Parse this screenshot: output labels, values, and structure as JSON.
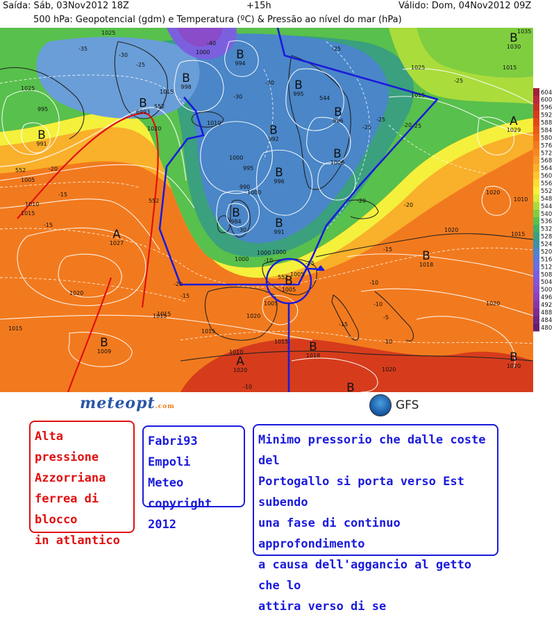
{
  "header": {
    "run": "Saída: Sáb, 03Nov2012 18Z",
    "lead": "+15h",
    "valid": "Válido: Dom, 04Nov2012 09Z",
    "title": "500 hPa: Geopotencial (gdm) e Temperatura (ºC) & Pressão ao nível do mar (hPa)"
  },
  "legend": {
    "values": [
      "604",
      "600",
      "596",
      "592",
      "588",
      "584",
      "580",
      "576",
      "572",
      "568",
      "564",
      "560",
      "556",
      "552",
      "548",
      "544",
      "540",
      "536",
      "532",
      "528",
      "524",
      "520",
      "516",
      "512",
      "508",
      "504",
      "500",
      "496",
      "492",
      "488",
      "484",
      "480"
    ],
    "colors": [
      "#a0203a",
      "#b8283e",
      "#c83024",
      "#d63c1c",
      "#e14a16",
      "#e85a16",
      "#ee6a18",
      "#f27a1e",
      "#f58a22",
      "#f79c26",
      "#f9b02a",
      "#fbc530",
      "#fadd36",
      "#f5f03c",
      "#d7ec3c",
      "#aadc3c",
      "#7fce40",
      "#58c04c",
      "#40b064",
      "#3aa07e",
      "#3c92a4",
      "#4a86c8",
      "#5a7ad8",
      "#6a6ee0",
      "#7a60de",
      "#8456d6",
      "#8a4cc8",
      "#8c42b8",
      "#8638a6",
      "#7c2e94",
      "#702682",
      "#641e70"
    ]
  },
  "map": {
    "centers": [
      {
        "letter": "B",
        "value": "6993"
      },
      {
        "letter": "B",
        "value": "991"
      },
      {
        "letter": "B",
        "value": "998"
      },
      {
        "letter": "B",
        "value": "994"
      },
      {
        "letter": "B",
        "value": "995"
      },
      {
        "letter": "B",
        "value": "996"
      },
      {
        "letter": "B",
        "value": "992"
      },
      {
        "letter": "B",
        "value": "1000"
      },
      {
        "letter": "B",
        "value": "996"
      },
      {
        "letter": "B",
        "value": "984"
      },
      {
        "letter": "B",
        "value": "991"
      },
      {
        "letter": "B",
        "value": "1005"
      },
      {
        "letter": "B",
        "value": "1009"
      },
      {
        "letter": "B",
        "value": "1018"
      },
      {
        "letter": "B",
        "value": "1020"
      },
      {
        "letter": "B",
        "value": "1018"
      },
      {
        "letter": "B",
        "value": "1030"
      },
      {
        "letter": "A",
        "value": "1027"
      },
      {
        "letter": "A",
        "value": "1029"
      },
      {
        "letter": "A",
        "value": "1020"
      },
      {
        "letter": "B",
        "value": ""
      }
    ],
    "isobar_labels": [
      "1025",
      "1005",
      "1015",
      "1010",
      "995",
      "1000",
      "1000",
      "1015",
      "1020",
      "1020",
      "1025",
      "1015",
      "1010",
      "1015",
      "1015",
      "1015",
      "1020",
      "1020",
      "1020",
      "1010",
      "1025",
      "1020",
      "1015",
      "1000",
      "1000",
      "1000",
      "995",
      "990",
      "1005",
      "1005",
      "1015",
      "1035",
      "1015",
      "1010",
      "1020",
      "1015",
      "1000"
    ],
    "temp_labels": [
      "-35",
      "-30",
      "-25",
      "-20",
      "-40",
      "-25",
      "-30",
      "-25",
      "-20",
      "-15",
      "-15",
      "-30",
      "-25",
      "-20",
      "-15",
      "-10",
      "-10",
      "-15",
      "-10",
      "-5",
      "-10",
      "-15",
      "-20",
      "-15",
      "-25",
      "-20",
      "-30",
      "-25",
      "-10"
    ],
    "height_labels": [
      "552",
      "552",
      "552",
      "552",
      "544"
    ]
  },
  "annotations": {
    "red": [
      "Alta pressione",
      "Azzorriana",
      "ferrea di blocco",
      "in atlantico"
    ],
    "blue1": [
      "Fabri93 Empoli",
      "Meteo",
      "copyright 2012"
    ],
    "blue2": [
      "Minimo pressorio che dalle coste del",
      "Portogallo si porta verso Est subendo",
      "una fase di continuo approfondimento",
      "a causa dell'aggancio al getto che lo",
      "attira verso di se"
    ]
  },
  "brands": {
    "meteopt": "meteopt",
    "meteopt_suffix": ".com",
    "gfs": "GFS"
  },
  "colors": {
    "red": "#e01010",
    "blue": "#1a1adc"
  }
}
